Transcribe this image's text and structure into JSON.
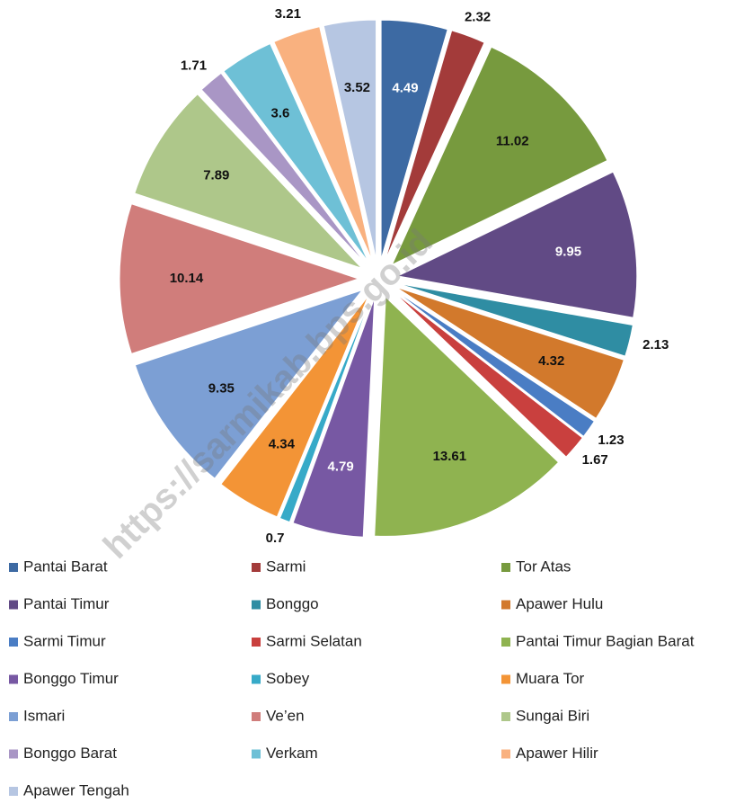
{
  "chart_data": {
    "type": "pie",
    "watermark": "https://sarmikab.bps.go.id",
    "categories": [
      "Pantai Barat",
      "Sarmi",
      "Tor Atas",
      "Pantai Timur",
      "Bonggo",
      "Apawer Hulu",
      "Sarmi Timur",
      "Sarmi Selatan",
      "Pantai Timur Bagian Barat",
      "Bonggo Timur",
      "Sobey",
      "Muara Tor",
      "Ismari",
      "Ve’en",
      "Sungai Biri",
      "Bonggo Barat",
      "Verkam",
      "Apawer Hilir",
      "Apawer Tengah"
    ],
    "values": [
      4.49,
      2.32,
      11.02,
      9.95,
      2.13,
      4.32,
      1.23,
      1.67,
      13.61,
      4.79,
      0.7,
      4.34,
      9.35,
      10.14,
      7.89,
      1.71,
      3.6,
      3.21,
      3.52
    ],
    "colors": [
      "#3d6aa3",
      "#a33b3a",
      "#779a3e",
      "#614a85",
      "#2f8da3",
      "#d2792c",
      "#4a7dc4",
      "#c9403e",
      "#8fb350",
      "#7758a3",
      "#37aac8",
      "#f39436",
      "#7c9fd4",
      "#d07d7b",
      "#aec78a",
      "#a996c5",
      "#6ec0d6",
      "#f9b17f",
      "#b6c6e2"
    ],
    "legend": "bottom"
  }
}
